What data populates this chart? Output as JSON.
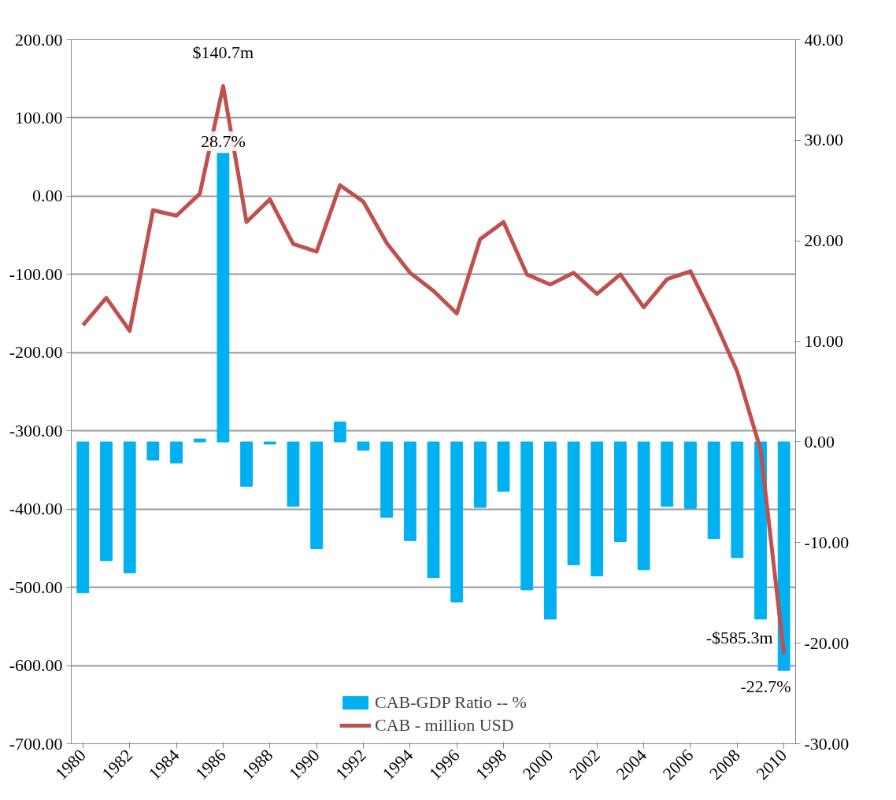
{
  "chart_data": {
    "type": "bar",
    "categories": [
      "1980",
      null,
      "1982",
      null,
      "1984",
      null,
      "1986",
      null,
      "1988",
      null,
      "1990",
      null,
      "1992",
      null,
      "1994",
      null,
      "1996",
      null,
      "1998",
      null,
      "2000",
      null,
      "2002",
      null,
      "2004",
      null,
      "2006",
      null,
      "2008",
      null,
      "2010"
    ],
    "series": [
      {
        "name": "CAB-GDP Ratio -- %",
        "axis": "y2",
        "color": "#00b0f0",
        "values": [
          -15.0,
          -11.8,
          -13.0,
          -1.8,
          -2.1,
          0.3,
          28.7,
          -4.4,
          -0.2,
          -6.4,
          -10.6,
          2.0,
          -0.8,
          -7.5,
          -9.8,
          -13.5,
          -15.9,
          -6.5,
          -4.9,
          -14.7,
          -17.6,
          -12.2,
          -13.3,
          -9.9,
          -12.7,
          -6.4,
          -6.6,
          -9.6,
          -11.5,
          -17.6,
          -22.7
        ],
        "value_labels": [
          null,
          null,
          null,
          null,
          null,
          null,
          "28.7%",
          null,
          null,
          null,
          null,
          null,
          null,
          null,
          null,
          null,
          null,
          null,
          null,
          null,
          null,
          null,
          null,
          null,
          null,
          null,
          null,
          null,
          null,
          null,
          "-22.7%"
        ]
      },
      {
        "name": "CAB - million USD",
        "type": "line",
        "axis": "y",
        "color": "#c0504d",
        "values": [
          -165,
          -130,
          -172,
          -18,
          -25,
          3,
          140.7,
          -33,
          -4,
          -61,
          -71,
          14,
          -7,
          -60,
          -98,
          -121,
          -150,
          -55,
          -33,
          -100,
          -113,
          -98,
          -125,
          -100,
          -142,
          -106,
          -96,
          -157,
          -224,
          -324,
          -585.3
        ],
        "value_labels": [
          null,
          null,
          null,
          null,
          null,
          null,
          "$140.7m",
          null,
          null,
          null,
          null,
          null,
          null,
          null,
          null,
          null,
          null,
          null,
          null,
          null,
          null,
          null,
          null,
          null,
          null,
          null,
          null,
          null,
          null,
          null,
          "-$585.3m"
        ]
      }
    ],
    "ylim": [
      -700,
      200
    ],
    "yticks": [
      {
        "value": -700,
        "label": "-700.00"
      },
      {
        "value": -600,
        "label": "-600.00"
      },
      {
        "value": -500,
        "label": "-500.00"
      },
      {
        "value": -400,
        "label": "-400.00"
      },
      {
        "value": -300,
        "label": "-300.00"
      },
      {
        "value": -200,
        "label": "-200.00"
      },
      {
        "value": -100,
        "label": "-100.00"
      },
      {
        "value": 0,
        "label": "0.00"
      },
      {
        "value": 100,
        "label": "100.00"
      },
      {
        "value": 200,
        "label": "200.00"
      }
    ],
    "y2lim": [
      -30,
      40
    ],
    "y2ticks": [
      {
        "value": -30,
        "label": "-30.00"
      },
      {
        "value": -20,
        "label": "-20.00"
      },
      {
        "value": -10,
        "label": "-10.00"
      },
      {
        "value": 0,
        "label": "0.00"
      },
      {
        "value": 10,
        "label": "10.00"
      },
      {
        "value": 20,
        "label": "20.00"
      },
      {
        "value": 30,
        "label": "30.00"
      },
      {
        "value": 40,
        "label": "40.00"
      }
    ],
    "grid": "y",
    "legend": "bottom",
    "line_style": "solid",
    "marker": "none"
  }
}
